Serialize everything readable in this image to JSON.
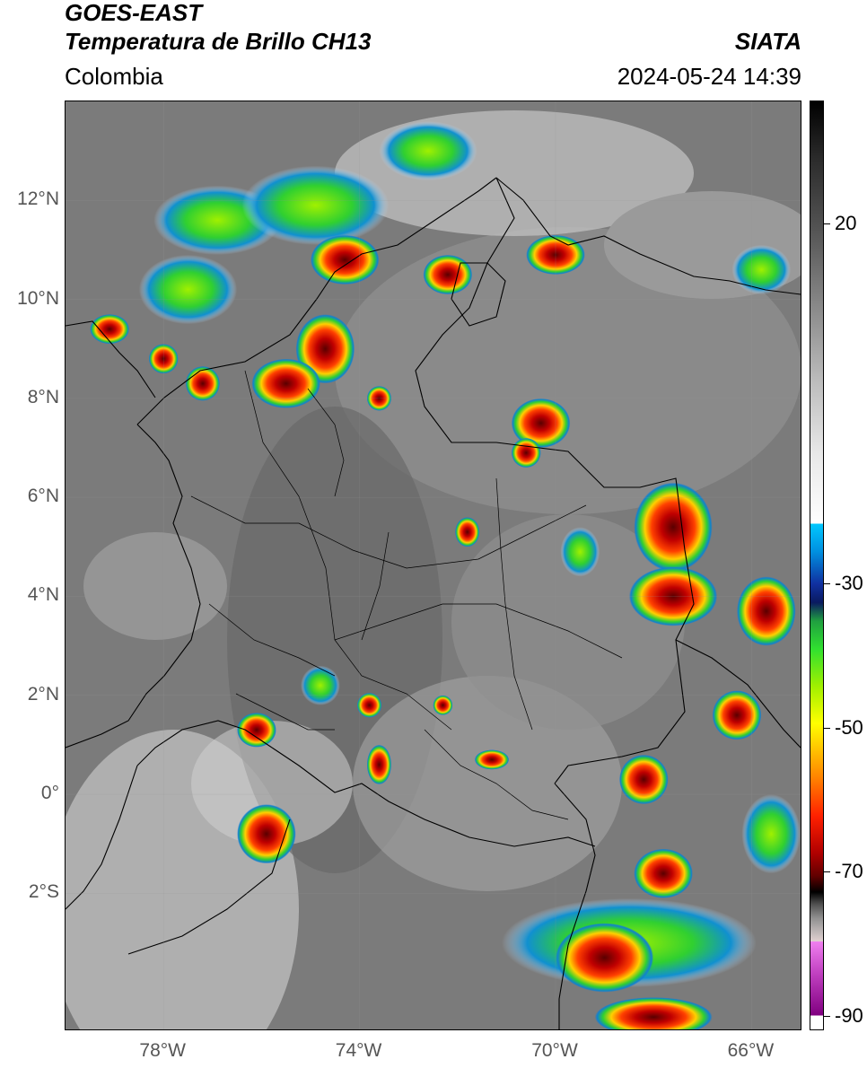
{
  "header": {
    "satellite": "GOES-EAST",
    "product": "Temperatura de Brillo CH13",
    "organization": "SIATA",
    "region": "Colombia",
    "datetime": "2024-05-24 14:39"
  },
  "map": {
    "lon_range": [
      -80,
      -65
    ],
    "lat_range": [
      -4.75,
      14.0
    ],
    "lat_ticks": [
      {
        "value": 12,
        "label": "12°N"
      },
      {
        "value": 10,
        "label": "10°N"
      },
      {
        "value": 8,
        "label": "8°N"
      },
      {
        "value": 6,
        "label": "6°N"
      },
      {
        "value": 4,
        "label": "4°N"
      },
      {
        "value": 2,
        "label": "2°N"
      },
      {
        "value": 0,
        "label": "0°"
      },
      {
        "value": -2,
        "label": "2°S"
      }
    ],
    "lon_ticks": [
      {
        "value": -78,
        "label": "78°W"
      },
      {
        "value": -74,
        "label": "74°W"
      },
      {
        "value": -70,
        "label": "70°W"
      },
      {
        "value": -66,
        "label": "66°W"
      }
    ],
    "storm_cells": [
      {
        "lon": -74.7,
        "lat": 9.0,
        "rx": 0.6,
        "ry": 0.7
      },
      {
        "lon": -75.5,
        "lat": 8.3,
        "rx": 0.7,
        "ry": 0.5
      },
      {
        "lon": -74.3,
        "lat": 10.8,
        "rx": 0.7,
        "ry": 0.5
      },
      {
        "lon": -72.2,
        "lat": 10.5,
        "rx": 0.5,
        "ry": 0.4
      },
      {
        "lon": -70.0,
        "lat": 10.9,
        "rx": 0.6,
        "ry": 0.4
      },
      {
        "lon": -79.1,
        "lat": 9.4,
        "rx": 0.4,
        "ry": 0.3
      },
      {
        "lon": -78.0,
        "lat": 8.8,
        "rx": 0.3,
        "ry": 0.3
      },
      {
        "lon": -77.2,
        "lat": 8.3,
        "rx": 0.35,
        "ry": 0.35
      },
      {
        "lon": -70.3,
        "lat": 7.5,
        "rx": 0.6,
        "ry": 0.5
      },
      {
        "lon": -70.6,
        "lat": 6.9,
        "rx": 0.3,
        "ry": 0.3
      },
      {
        "lon": -67.6,
        "lat": 5.4,
        "rx": 0.8,
        "ry": 0.9
      },
      {
        "lon": -67.6,
        "lat": 4.0,
        "rx": 0.9,
        "ry": 0.6
      },
      {
        "lon": -65.7,
        "lat": 3.7,
        "rx": 0.6,
        "ry": 0.7
      },
      {
        "lon": -66.3,
        "lat": 1.6,
        "rx": 0.5,
        "ry": 0.5
      },
      {
        "lon": -68.2,
        "lat": 0.3,
        "rx": 0.5,
        "ry": 0.5
      },
      {
        "lon": -76.1,
        "lat": 1.3,
        "rx": 0.4,
        "ry": 0.35
      },
      {
        "lon": -73.6,
        "lat": 0.6,
        "rx": 0.25,
        "ry": 0.4
      },
      {
        "lon": -75.9,
        "lat": -0.8,
        "rx": 0.6,
        "ry": 0.6
      },
      {
        "lon": -71.8,
        "lat": 5.3,
        "rx": 0.25,
        "ry": 0.3
      },
      {
        "lon": -73.8,
        "lat": 1.8,
        "rx": 0.25,
        "ry": 0.25
      },
      {
        "lon": -72.3,
        "lat": 1.8,
        "rx": 0.2,
        "ry": 0.2
      },
      {
        "lon": -67.8,
        "lat": -1.6,
        "rx": 0.6,
        "ry": 0.5
      },
      {
        "lon": -69.0,
        "lat": -3.3,
        "rx": 1.0,
        "ry": 0.7
      },
      {
        "lon": -68.0,
        "lat": -4.5,
        "rx": 1.2,
        "ry": 0.4
      },
      {
        "lon": -73.6,
        "lat": 8.0,
        "rx": 0.25,
        "ry": 0.25
      },
      {
        "lon": -71.3,
        "lat": 0.7,
        "rx": 0.35,
        "ry": 0.2
      }
    ],
    "convection_bands": [
      {
        "lon": -76.9,
        "lat": 11.6,
        "rx": 1.3,
        "ry": 0.7
      },
      {
        "lon": -74.9,
        "lat": 11.9,
        "rx": 1.5,
        "ry": 0.8
      },
      {
        "lon": -72.6,
        "lat": 13.0,
        "rx": 1.0,
        "ry": 0.6
      },
      {
        "lon": -68.5,
        "lat": -3.0,
        "rx": 2.6,
        "ry": 0.9
      },
      {
        "lon": -65.8,
        "lat": 10.6,
        "rx": 0.6,
        "ry": 0.5
      },
      {
        "lon": -77.5,
        "lat": 10.2,
        "rx": 1.0,
        "ry": 0.7
      },
      {
        "lon": -69.5,
        "lat": 4.9,
        "rx": 0.4,
        "ry": 0.5
      },
      {
        "lon": -74.8,
        "lat": 2.2,
        "rx": 0.4,
        "ry": 0.4
      },
      {
        "lon": -65.6,
        "lat": -0.8,
        "rx": 0.6,
        "ry": 0.8
      }
    ]
  },
  "colorbar": {
    "vmax": 37,
    "vmin": -92,
    "ticks": [
      {
        "value": 20,
        "label": "20"
      },
      {
        "value": -30,
        "label": "-30"
      },
      {
        "value": -50,
        "label": "-50"
      },
      {
        "value": -70,
        "label": "-70"
      },
      {
        "value": -90,
        "label": "-90"
      }
    ],
    "stops": {
      "warm": "#000000",
      "cold_cyan": "#00c8ff",
      "cold_green": "#30e030",
      "cold_yellow": "#ffff00",
      "cold_red": "#ff2000",
      "coldest_magenta": "#c040c0"
    }
  }
}
